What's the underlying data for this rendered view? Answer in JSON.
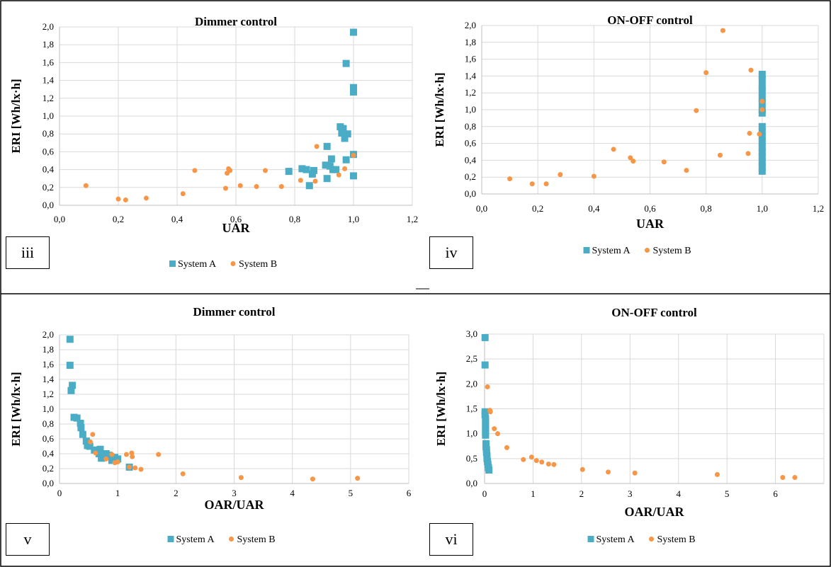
{
  "colors": {
    "system_a": "#4BACC6",
    "system_b": "#F79646",
    "grid": "#d9d9d9",
    "axis": "#bfbfbf"
  },
  "legend_labels": [
    "System A",
    "System B"
  ],
  "chart_data": [
    {
      "id": "iii",
      "panel_label": "iii",
      "type": "scatter",
      "title": "Dimmer control",
      "xlabel": "UAR",
      "ylabel": "ERI [Wh/lx·h]",
      "xlim": [
        0,
        1.2
      ],
      "ylim": [
        0,
        2.0
      ],
      "xticks": [
        "0,0",
        "0,2",
        "0,4",
        "0,6",
        "0,8",
        "1,0",
        "1,2"
      ],
      "yticks": [
        "0,0",
        "0,2",
        "0,4",
        "0,6",
        "0,8",
        "1,0",
        "1,2",
        "1,4",
        "1,6",
        "1,8",
        "2,0"
      ],
      "grid": true,
      "legend_position": "bottom",
      "series": [
        {
          "name": "System A",
          "marker": "square",
          "points": [
            [
              1.0,
              1.94
            ],
            [
              0.975,
              1.59
            ],
            [
              1.0,
              1.32
            ],
            [
              1.0,
              1.27
            ],
            [
              0.955,
              0.88
            ],
            [
              0.965,
              0.86
            ],
            [
              0.96,
              0.81
            ],
            [
              0.98,
              0.8
            ],
            [
              0.97,
              0.75
            ],
            [
              0.91,
              0.66
            ],
            [
              0.975,
              0.51
            ],
            [
              1.0,
              0.57
            ],
            [
              0.925,
              0.52
            ],
            [
              0.905,
              0.45
            ],
            [
              0.92,
              0.44
            ],
            [
              0.93,
              0.4
            ],
            [
              0.94,
              0.4
            ],
            [
              0.78,
              0.38
            ],
            [
              0.825,
              0.41
            ],
            [
              0.84,
              0.4
            ],
            [
              0.865,
              0.39
            ],
            [
              0.86,
              0.35
            ],
            [
              0.91,
              0.3
            ],
            [
              0.85,
              0.22
            ],
            [
              1.0,
              0.33
            ]
          ]
        },
        {
          "name": "System B",
          "marker": "circle",
          "points": [
            [
              0.09,
              0.22
            ],
            [
              0.2,
              0.07
            ],
            [
              0.225,
              0.06
            ],
            [
              0.295,
              0.08
            ],
            [
              0.42,
              0.13
            ],
            [
              0.46,
              0.39
            ],
            [
              0.565,
              0.19
            ],
            [
              0.57,
              0.36
            ],
            [
              0.575,
              0.41
            ],
            [
              0.58,
              0.39
            ],
            [
              0.615,
              0.22
            ],
            [
              0.67,
              0.21
            ],
            [
              0.7,
              0.39
            ],
            [
              0.755,
              0.21
            ],
            [
              0.82,
              0.28
            ],
            [
              0.875,
              0.66
            ],
            [
              0.87,
              0.27
            ],
            [
              0.95,
              0.34
            ],
            [
              0.97,
              0.41
            ],
            [
              1.0,
              0.56
            ]
          ]
        }
      ]
    },
    {
      "id": "iv",
      "panel_label": "iv",
      "type": "scatter",
      "title": "ON-OFF control",
      "xlabel": "UAR",
      "ylabel": "ERI [Wh/lx·h]",
      "xlim": [
        0,
        1.2
      ],
      "ylim": [
        0,
        2.0
      ],
      "xticks": [
        "0,0",
        "0,2",
        "0,4",
        "0,6",
        "0,8",
        "1,0",
        "1,2"
      ],
      "yticks": [
        "0,0",
        "0,2",
        "0,4",
        "0,6",
        "0,8",
        "1,0",
        "1,2",
        "1,4",
        "1,6",
        "1,8",
        "2,0"
      ],
      "grid": true,
      "legend_position": "bottom",
      "series": [
        {
          "name": "System A",
          "marker": "square",
          "points": [
            [
              1.0,
              1.42
            ],
            [
              1.0,
              1.36
            ],
            [
              1.0,
              1.28
            ],
            [
              1.0,
              1.22
            ],
            [
              1.0,
              1.14
            ],
            [
              1.0,
              1.08
            ],
            [
              1.0,
              1.0
            ],
            [
              1.0,
              0.96
            ],
            [
              1.0,
              0.8
            ],
            [
              1.0,
              0.74
            ],
            [
              1.0,
              0.68
            ],
            [
              1.0,
              0.62
            ],
            [
              1.0,
              0.56
            ],
            [
              1.0,
              0.5
            ],
            [
              1.0,
              0.44
            ],
            [
              1.0,
              0.38
            ],
            [
              1.0,
              0.32
            ],
            [
              1.0,
              0.27
            ]
          ]
        },
        {
          "name": "System B",
          "marker": "circle",
          "points": [
            [
              0.1,
              0.18
            ],
            [
              0.18,
              0.12
            ],
            [
              0.23,
              0.12
            ],
            [
              0.28,
              0.23
            ],
            [
              0.4,
              0.21
            ],
            [
              0.47,
              0.53
            ],
            [
              0.53,
              0.43
            ],
            [
              0.54,
              0.39
            ],
            [
              0.65,
              0.38
            ],
            [
              0.73,
              0.28
            ],
            [
              0.765,
              0.99
            ],
            [
              0.8,
              1.44
            ],
            [
              0.85,
              0.46
            ],
            [
              0.86,
              1.94
            ],
            [
              0.95,
              0.48
            ],
            [
              0.955,
              0.72
            ],
            [
              0.96,
              1.47
            ],
            [
              0.99,
              0.71
            ],
            [
              1.0,
              1.1
            ],
            [
              1.0,
              1.0
            ]
          ]
        }
      ]
    },
    {
      "id": "v",
      "panel_label": "v",
      "type": "scatter",
      "title": "Dimmer control",
      "xlabel": "OAR/UAR",
      "ylabel": "ERI [Wh/lx·h]",
      "xlim": [
        0,
        6
      ],
      "ylim": [
        0,
        2.0
      ],
      "xticks": [
        "0",
        "1",
        "2",
        "3",
        "4",
        "5",
        "6"
      ],
      "yticks": [
        "0,0",
        "0,2",
        "0,4",
        "0,6",
        "0,8",
        "1,0",
        "1,2",
        "1,4",
        "1,6",
        "1,8",
        "2,0"
      ],
      "grid": true,
      "legend_position": "bottom",
      "series": [
        {
          "name": "System A",
          "marker": "square",
          "points": [
            [
              0.18,
              1.94
            ],
            [
              0.18,
              1.59
            ],
            [
              0.22,
              1.32
            ],
            [
              0.2,
              1.25
            ],
            [
              0.25,
              0.89
            ],
            [
              0.3,
              0.88
            ],
            [
              0.36,
              0.81
            ],
            [
              0.37,
              0.75
            ],
            [
              0.4,
              0.66
            ],
            [
              0.46,
              0.57
            ],
            [
              0.48,
              0.51
            ],
            [
              0.52,
              0.5
            ],
            [
              0.6,
              0.45
            ],
            [
              0.65,
              0.44
            ],
            [
              0.7,
              0.46
            ],
            [
              0.68,
              0.4
            ],
            [
              0.72,
              0.34
            ],
            [
              0.8,
              0.4
            ],
            [
              0.85,
              0.38
            ],
            [
              0.9,
              0.31
            ],
            [
              0.95,
              0.35
            ],
            [
              1.0,
              0.33
            ],
            [
              1.2,
              0.22
            ]
          ]
        },
        {
          "name": "System B",
          "marker": "circle",
          "points": [
            [
              0.57,
              0.66
            ],
            [
              0.53,
              0.56
            ],
            [
              0.62,
              0.41
            ],
            [
              0.8,
              0.33
            ],
            [
              0.9,
              0.39
            ],
            [
              0.95,
              0.28
            ],
            [
              1.0,
              0.29
            ],
            [
              1.15,
              0.39
            ],
            [
              1.2,
              0.22
            ],
            [
              1.24,
              0.41
            ],
            [
              1.25,
              0.36
            ],
            [
              1.3,
              0.21
            ],
            [
              1.4,
              0.19
            ],
            [
              1.7,
              0.39
            ],
            [
              2.12,
              0.13
            ],
            [
              3.12,
              0.08
            ],
            [
              4.35,
              0.06
            ],
            [
              5.12,
              0.07
            ]
          ]
        }
      ]
    },
    {
      "id": "vi",
      "panel_label": "vi",
      "type": "scatter",
      "title": "ON-OFF control",
      "xlabel": "OAR/UAR",
      "ylabel": "ERI [Wh/lx·h]",
      "xlim": [
        0,
        7
      ],
      "ylim": [
        0,
        3.0
      ],
      "xticks": [
        "0",
        "1",
        "2",
        "3",
        "4",
        "5",
        "6"
      ],
      "yticks": [
        "0,0",
        "0,5",
        "1,0",
        "1,5",
        "2,0",
        "2,5",
        "3,0"
      ],
      "grid": true,
      "legend_position": "bottom",
      "series": [
        {
          "name": "System A",
          "marker": "square",
          "points": [
            [
              0.01,
              2.93
            ],
            [
              0.01,
              2.38
            ],
            [
              0.01,
              1.44
            ],
            [
              0.01,
              1.38
            ],
            [
              0.02,
              1.3
            ],
            [
              0.02,
              1.24
            ],
            [
              0.02,
              1.16
            ],
            [
              0.02,
              1.1
            ],
            [
              0.02,
              1.02
            ],
            [
              0.02,
              0.97
            ],
            [
              0.03,
              0.8
            ],
            [
              0.03,
              0.74
            ],
            [
              0.04,
              0.68
            ],
            [
              0.04,
              0.62
            ],
            [
              0.05,
              0.56
            ],
            [
              0.05,
              0.5
            ],
            [
              0.06,
              0.44
            ],
            [
              0.07,
              0.38
            ],
            [
              0.08,
              0.32
            ],
            [
              0.09,
              0.27
            ]
          ]
        },
        {
          "name": "System B",
          "marker": "circle",
          "points": [
            [
              0.06,
              1.94
            ],
            [
              0.11,
              1.47
            ],
            [
              0.12,
              1.44
            ],
            [
              0.2,
              1.1
            ],
            [
              0.27,
              1.0
            ],
            [
              0.46,
              0.72
            ],
            [
              0.8,
              0.48
            ],
            [
              0.97,
              0.53
            ],
            [
              1.07,
              0.46
            ],
            [
              1.18,
              0.43
            ],
            [
              1.32,
              0.39
            ],
            [
              1.43,
              0.38
            ],
            [
              2.02,
              0.28
            ],
            [
              2.55,
              0.23
            ],
            [
              3.1,
              0.21
            ],
            [
              4.8,
              0.18
            ],
            [
              6.15,
              0.12
            ],
            [
              6.4,
              0.12
            ]
          ]
        }
      ]
    }
  ]
}
